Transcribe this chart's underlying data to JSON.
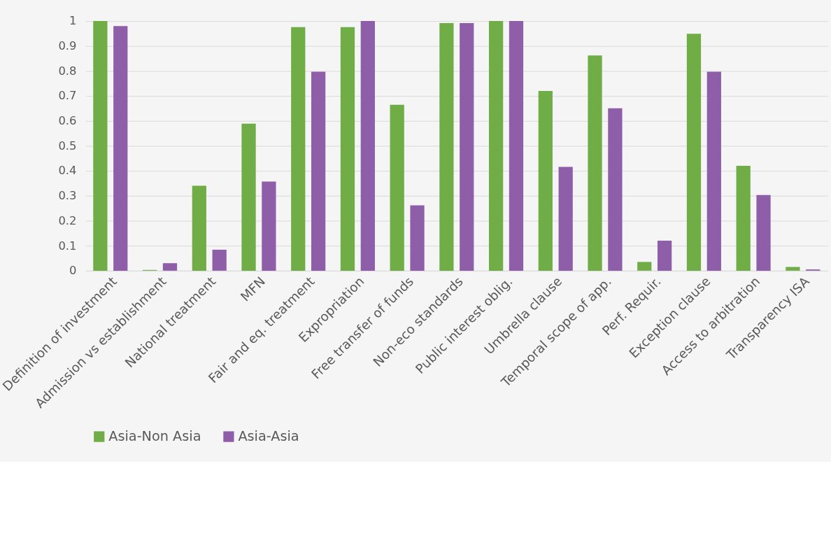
{
  "chart_data": {
    "type": "bar",
    "categories": [
      "Definition of investment",
      "Admission vs establishment",
      "National treatment",
      "MFN",
      "Fair and eq. treatment",
      "Expropriation",
      "Free transfer of funds",
      "Non-eco standards",
      "Public interest oblig.",
      "Umbrella clause",
      "Temporal scope of app.",
      "Perf. Requir.",
      "Exception clause",
      "Access to arbitration",
      "Transparency ISA"
    ],
    "series": [
      {
        "name": "Asia-Non Asia",
        "color": "#70ad47",
        "values": [
          1,
          0.003,
          0.34,
          0.589,
          0.976,
          0.976,
          0.665,
          0.992,
          1,
          0.72,
          0.862,
          0.035,
          0.949,
          0.42,
          0.015
        ]
      },
      {
        "name": "Asia-Asia",
        "color": "#8e5ea9",
        "values": [
          0.98,
          0.03,
          0.084,
          0.357,
          0.797,
          1,
          0.262,
          0.992,
          1,
          0.416,
          0.651,
          0.12,
          0.797,
          0.303,
          0.005
        ]
      }
    ],
    "ylim": [
      0,
      1
    ],
    "yticks": [
      0,
      0.1,
      0.2,
      0.3,
      0.4,
      0.5,
      0.6,
      0.7,
      0.8,
      0.9,
      1
    ],
    "grid": "y",
    "legend": "bottom"
  }
}
